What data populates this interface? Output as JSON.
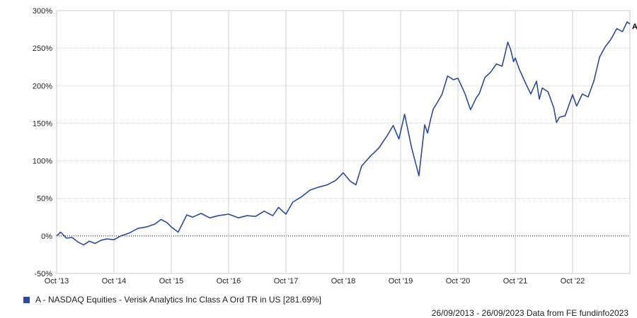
{
  "chart_data": {
    "type": "line",
    "ylim": [
      -50,
      300
    ],
    "y_ticks": [
      -50,
      0,
      50,
      100,
      150,
      200,
      250,
      300
    ],
    "y_tick_suffix": "%",
    "x_ticks": [
      "Oct '13",
      "Oct '14",
      "Oct '15",
      "Oct '16",
      "Oct '17",
      "Oct '18",
      "Oct '19",
      "Oct '20",
      "Oct '21",
      "Oct '22"
    ],
    "x_range": [
      2013.73,
      2023.73
    ],
    "grid": true,
    "zero_line": "dotted",
    "series": [
      {
        "name": "A - NASDAQ Equities - Verisk Analytics Inc Class A Ord TR in US [281.69%]",
        "marker_label": "A",
        "color": "#2a4b9b",
        "x": [
          2013.73,
          2013.8,
          2013.9,
          2014.0,
          2014.1,
          2014.2,
          2014.3,
          2014.4,
          2014.5,
          2014.6,
          2014.73,
          2014.85,
          2015.0,
          2015.15,
          2015.3,
          2015.45,
          2015.55,
          2015.65,
          2015.73,
          2015.85,
          2016.0,
          2016.1,
          2016.25,
          2016.4,
          2016.55,
          2016.73,
          2016.9,
          2017.05,
          2017.2,
          2017.35,
          2017.5,
          2017.6,
          2017.73,
          2017.85,
          2018.0,
          2018.15,
          2018.3,
          2018.45,
          2018.6,
          2018.73,
          2018.85,
          2018.95,
          2019.05,
          2019.2,
          2019.35,
          2019.5,
          2019.6,
          2019.7,
          2019.8,
          2019.92,
          2020.05,
          2020.15,
          2020.2,
          2020.25,
          2020.3,
          2020.35,
          2020.45,
          2020.55,
          2020.65,
          2020.73,
          2020.85,
          2020.95,
          2021.05,
          2021.1,
          2021.2,
          2021.3,
          2021.4,
          2021.5,
          2021.6,
          2021.65,
          2021.7,
          2021.73,
          2021.8,
          2021.9,
          2022.0,
          2022.1,
          2022.15,
          2022.2,
          2022.3,
          2022.4,
          2022.45,
          2022.5,
          2022.6,
          2022.73,
          2022.8,
          2022.9,
          2023.0,
          2023.1,
          2023.2,
          2023.3,
          2023.4,
          2023.5,
          2023.6,
          2023.68,
          2023.73
        ],
        "values": [
          0,
          5,
          -3,
          -2,
          -8,
          -12,
          -7,
          -10,
          -6,
          -4,
          -5,
          0,
          4,
          10,
          12,
          16,
          22,
          18,
          12,
          5,
          28,
          25,
          30,
          24,
          27,
          29,
          24,
          27,
          26,
          33,
          27,
          38,
          29,
          45,
          52,
          61,
          65,
          68,
          74,
          84,
          73,
          68,
          93,
          106,
          117,
          134,
          147,
          129,
          162,
          118,
          80,
          148,
          137,
          154,
          169,
          175,
          188,
          213,
          208,
          210,
          190,
          168,
          184,
          189,
          211,
          218,
          229,
          226,
          258,
          248,
          232,
          237,
          222,
          205,
          189,
          206,
          182,
          197,
          192,
          171,
          151,
          158,
          160,
          188,
          173,
          189,
          185,
          206,
          238,
          252,
          262,
          276,
          272,
          285,
          282
        ]
      }
    ]
  },
  "footer": {
    "source": "26/09/2013 - 26/09/2023 Data from FE fundinfo2023"
  }
}
